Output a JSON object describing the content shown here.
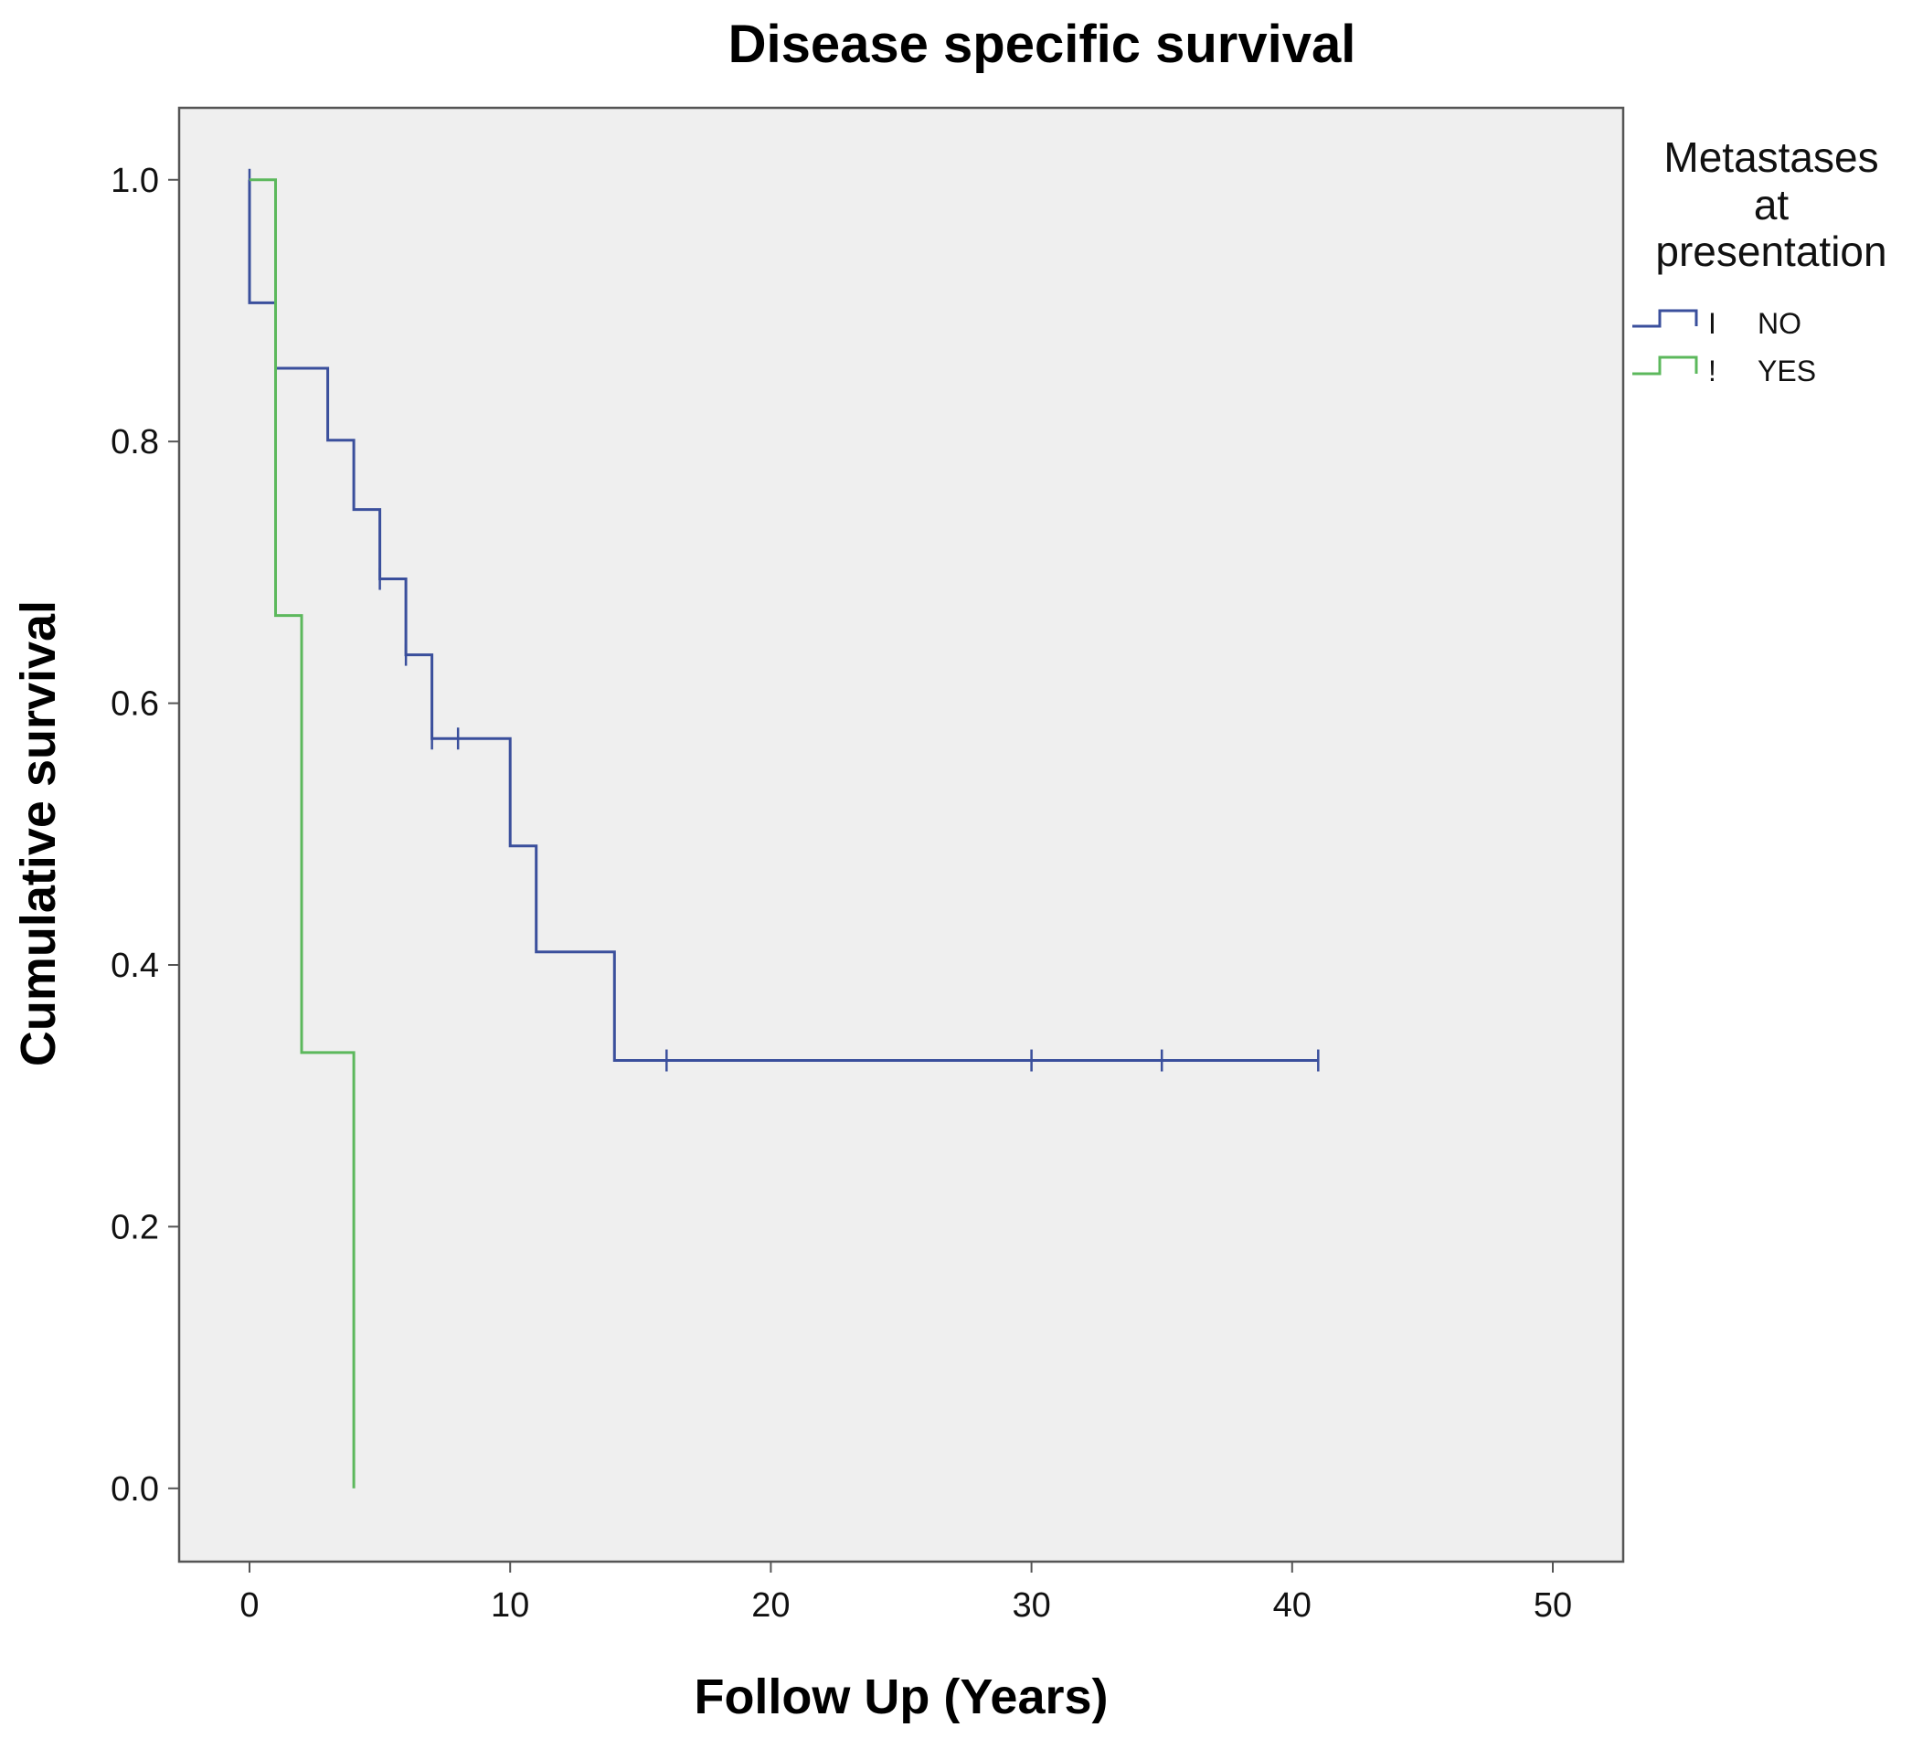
{
  "chart_data": {
    "type": "line",
    "subtype": "kaplan-meier step",
    "title": "Disease specific survival",
    "xlabel": "Follow Up (Years)",
    "ylabel": "Cumulative survival",
    "xlim": [
      -2.7,
      52.7
    ],
    "ylim": [
      -0.056,
      1.055
    ],
    "xticks": [
      0,
      10,
      20,
      30,
      40,
      50
    ],
    "yticks": [
      0.0,
      0.2,
      0.4,
      0.6,
      0.8,
      1.0
    ],
    "xtick_labels": [
      "0",
      "10",
      "20",
      "30",
      "40",
      "50"
    ],
    "ytick_labels": [
      "0.0",
      "0.2",
      "0.4",
      "0.6",
      "0.8",
      "1.0"
    ],
    "grid": false,
    "legend": {
      "title": [
        "Metastases",
        "at",
        "presentation"
      ],
      "placement": "right",
      "entries": [
        {
          "label": "NO",
          "marker": "I"
        },
        {
          "label": "YES",
          "marker": "!"
        }
      ]
    },
    "series": [
      {
        "name": "NO",
        "color": "#3a4f9c",
        "steps": [
          [
            0,
            1.0
          ],
          [
            0,
            0.906
          ],
          [
            1,
            0.906
          ],
          [
            1,
            0.856
          ],
          [
            3,
            0.856
          ],
          [
            3,
            0.801
          ],
          [
            4,
            0.801
          ],
          [
            4,
            0.748
          ],
          [
            5,
            0.748
          ],
          [
            5,
            0.695
          ],
          [
            6,
            0.695
          ],
          [
            6,
            0.637
          ],
          [
            7,
            0.637
          ],
          [
            7,
            0.573
          ],
          [
            10,
            0.573
          ],
          [
            10,
            0.491
          ],
          [
            11,
            0.491
          ],
          [
            11,
            0.41
          ],
          [
            14,
            0.41
          ],
          [
            14,
            0.327
          ],
          [
            41,
            0.327
          ]
        ],
        "censored": [
          [
            0,
            1.0
          ],
          [
            1,
            0.856
          ],
          [
            5,
            0.695
          ],
          [
            6,
            0.637
          ],
          [
            7,
            0.573
          ],
          [
            8,
            0.573
          ],
          [
            16,
            0.327
          ],
          [
            30,
            0.327
          ],
          [
            35,
            0.327
          ],
          [
            41,
            0.327
          ]
        ]
      },
      {
        "name": "YES",
        "color": "#5cb85c",
        "steps": [
          [
            0,
            1.0
          ],
          [
            1,
            1.0
          ],
          [
            1,
            0.667
          ],
          [
            2,
            0.667
          ],
          [
            2,
            0.333
          ],
          [
            4,
            0.333
          ],
          [
            4,
            0.0
          ]
        ],
        "censored": []
      }
    ]
  },
  "colors": {
    "plot_background": "#efefef",
    "frame": "#555555"
  }
}
